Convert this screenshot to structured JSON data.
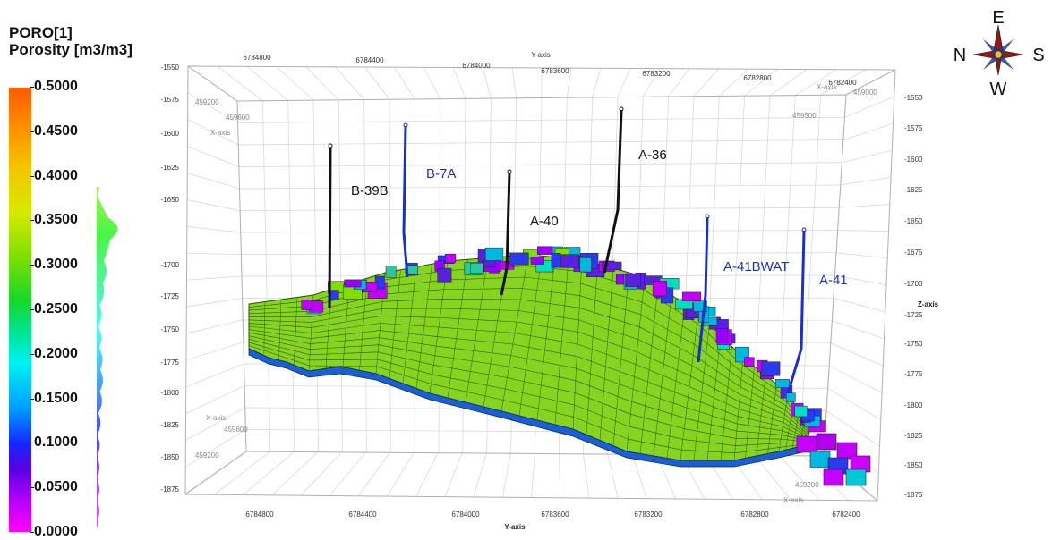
{
  "legend": {
    "title_line1": "PORO[1]",
    "title_line2": "Porosity [m3/m3]",
    "ticks": [
      "0.5000",
      "0.4500",
      "0.4000",
      "0.3500",
      "0.3000",
      "0.2500",
      "0.2000",
      "0.1500",
      "0.1000",
      "0.0500",
      "0.0000"
    ]
  },
  "axes": {
    "y_axis_title": "Y-axis",
    "x_axis_title": "X-axis",
    "z_axis_title": "Z-axis",
    "y_top_ticks": [
      "6784800",
      "6784400",
      "6784000",
      "6783600",
      "6783200",
      "6782800",
      "6782400"
    ],
    "y_bottom_ticks": [
      "6784800",
      "6784400",
      "6784000",
      "6783600",
      "6783200",
      "6782800",
      "6782400"
    ],
    "z_left_ticks": [
      "-1550",
      "-1575",
      "-1600",
      "-1625",
      "-1650",
      "-1700",
      "-1725",
      "-1750",
      "-1775",
      "-1800",
      "-1825",
      "-1850",
      "-1875"
    ],
    "z_right_ticks": [
      "-1550",
      "-1575",
      "-1600",
      "-1625",
      "-1650",
      "-1675",
      "-1700",
      "-1725",
      "-1750",
      "-1775",
      "-1800",
      "-1825",
      "-1850",
      "-1875"
    ],
    "x_ticks_left_top": [
      "459200",
      "459600"
    ],
    "x_ticks_left_bottom": [
      "459600",
      "459200"
    ],
    "x_ticks_right_top": [
      "459000",
      "459500"
    ],
    "x_ticks_right_bottom": [
      "459600",
      "459200"
    ]
  },
  "wells": [
    {
      "name": "B-39B",
      "color": "#111111"
    },
    {
      "name": "B-7A",
      "color": "#1a2fd0"
    },
    {
      "name": "A-40",
      "color": "#111111"
    },
    {
      "name": "A-36",
      "color": "#111111"
    },
    {
      "name": "A-41BWAT",
      "color": "#1a2fd0"
    },
    {
      "name": "A-41",
      "color": "#1a2fd0"
    }
  ],
  "compass": {
    "north": "N",
    "east": "E",
    "south": "S",
    "west": "W"
  }
}
